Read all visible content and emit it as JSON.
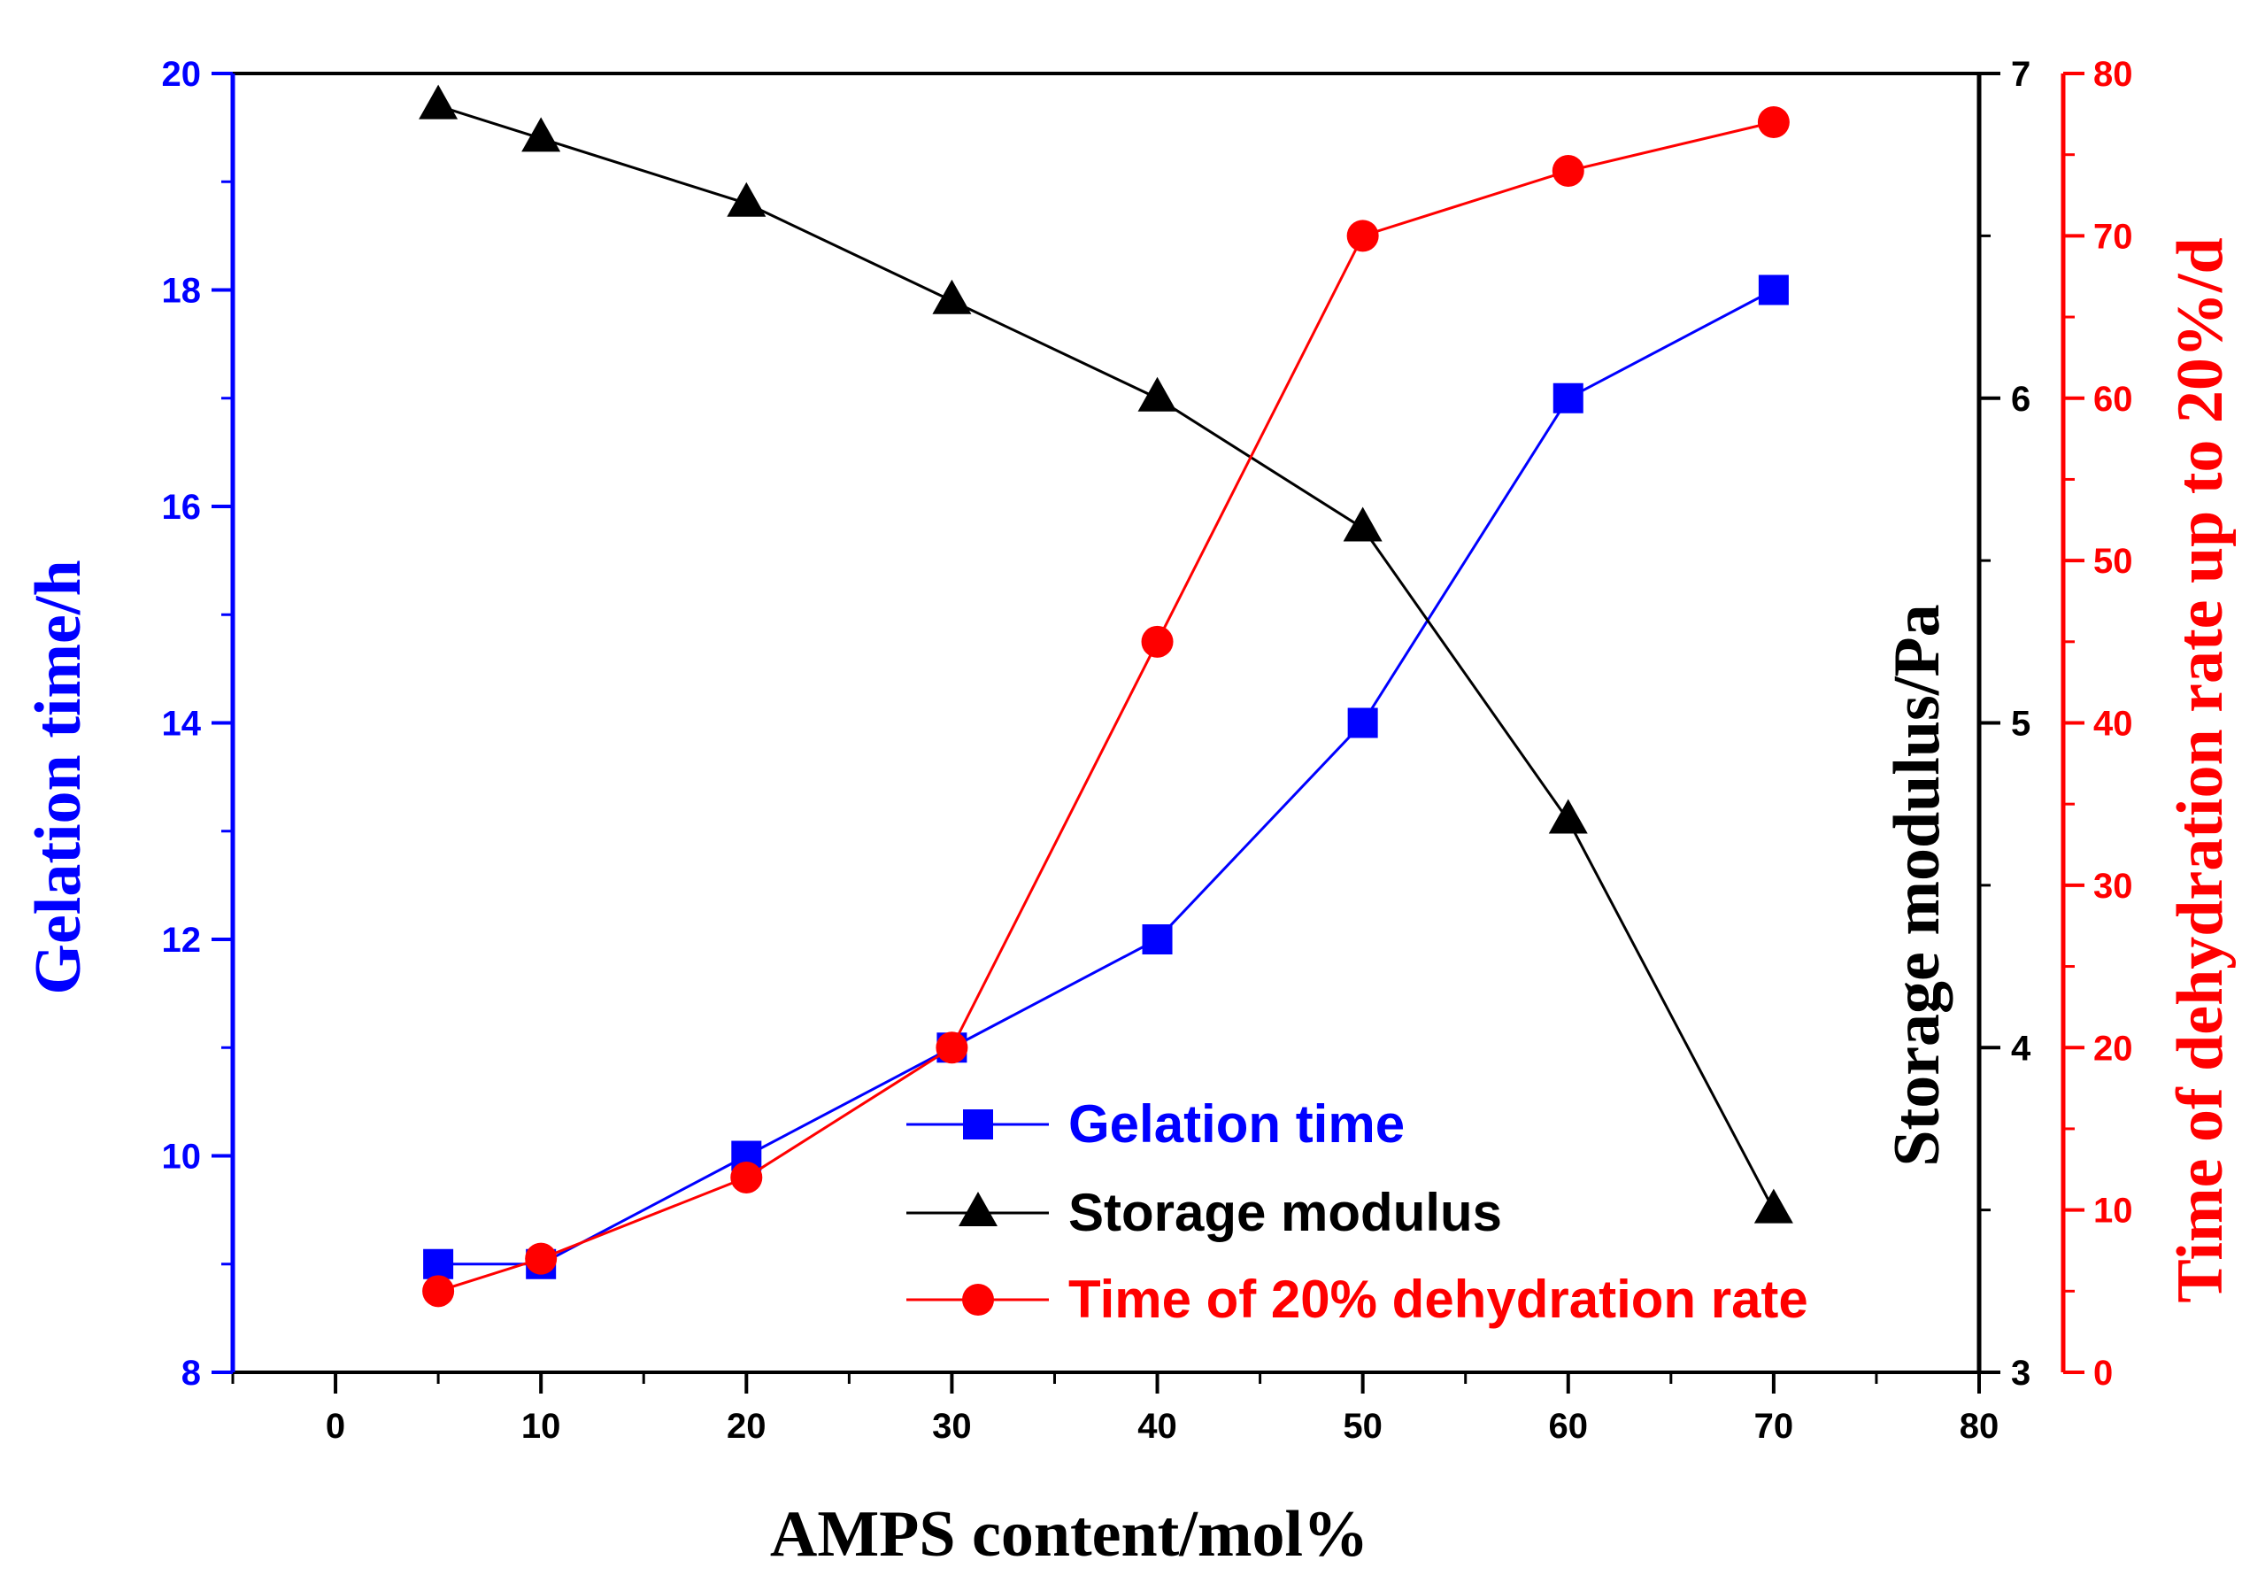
{
  "chart_data": {
    "type": "line",
    "xlabel": "AMPS content/mol%",
    "xlim": [
      -5,
      80
    ],
    "xticks": [
      0,
      10,
      20,
      30,
      40,
      50,
      60,
      70,
      80
    ],
    "x": [
      5,
      10,
      20,
      30,
      40,
      50,
      60,
      70
    ],
    "axes": {
      "left": {
        "label": "Gelation time/h",
        "color": "#0000ff",
        "lim": [
          8,
          20
        ],
        "ticks": [
          8,
          10,
          12,
          14,
          16,
          18,
          20
        ]
      },
      "right1": {
        "label": "Storage modulus/Pa",
        "color": "#000000",
        "lim": [
          3,
          7
        ],
        "ticks": [
          3,
          4,
          5,
          6,
          7
        ]
      },
      "right2": {
        "label": "Time of dehydration rate up to 20%/d",
        "color": "#ff0000",
        "lim": [
          0,
          80
        ],
        "ticks": [
          0,
          10,
          20,
          30,
          40,
          50,
          60,
          70,
          80
        ]
      }
    },
    "series": [
      {
        "name": "Gelation time",
        "axis": "left",
        "marker": "square",
        "color": "#0000ff",
        "values": [
          9,
          9,
          10,
          11,
          12,
          14,
          17,
          18
        ]
      },
      {
        "name": "Storage modulus",
        "axis": "right1",
        "marker": "triangle",
        "color": "#000000",
        "values": [
          6.9,
          6.8,
          6.6,
          6.3,
          6.0,
          5.6,
          4.7,
          3.5
        ]
      },
      {
        "name": "Time of 20% dehydration rate",
        "axis": "right2",
        "marker": "circle",
        "color": "#ff0000",
        "values": [
          5,
          7,
          12,
          20,
          45,
          70,
          74,
          77
        ]
      }
    ],
    "legend_position": "bottom-center",
    "grid": false
  }
}
